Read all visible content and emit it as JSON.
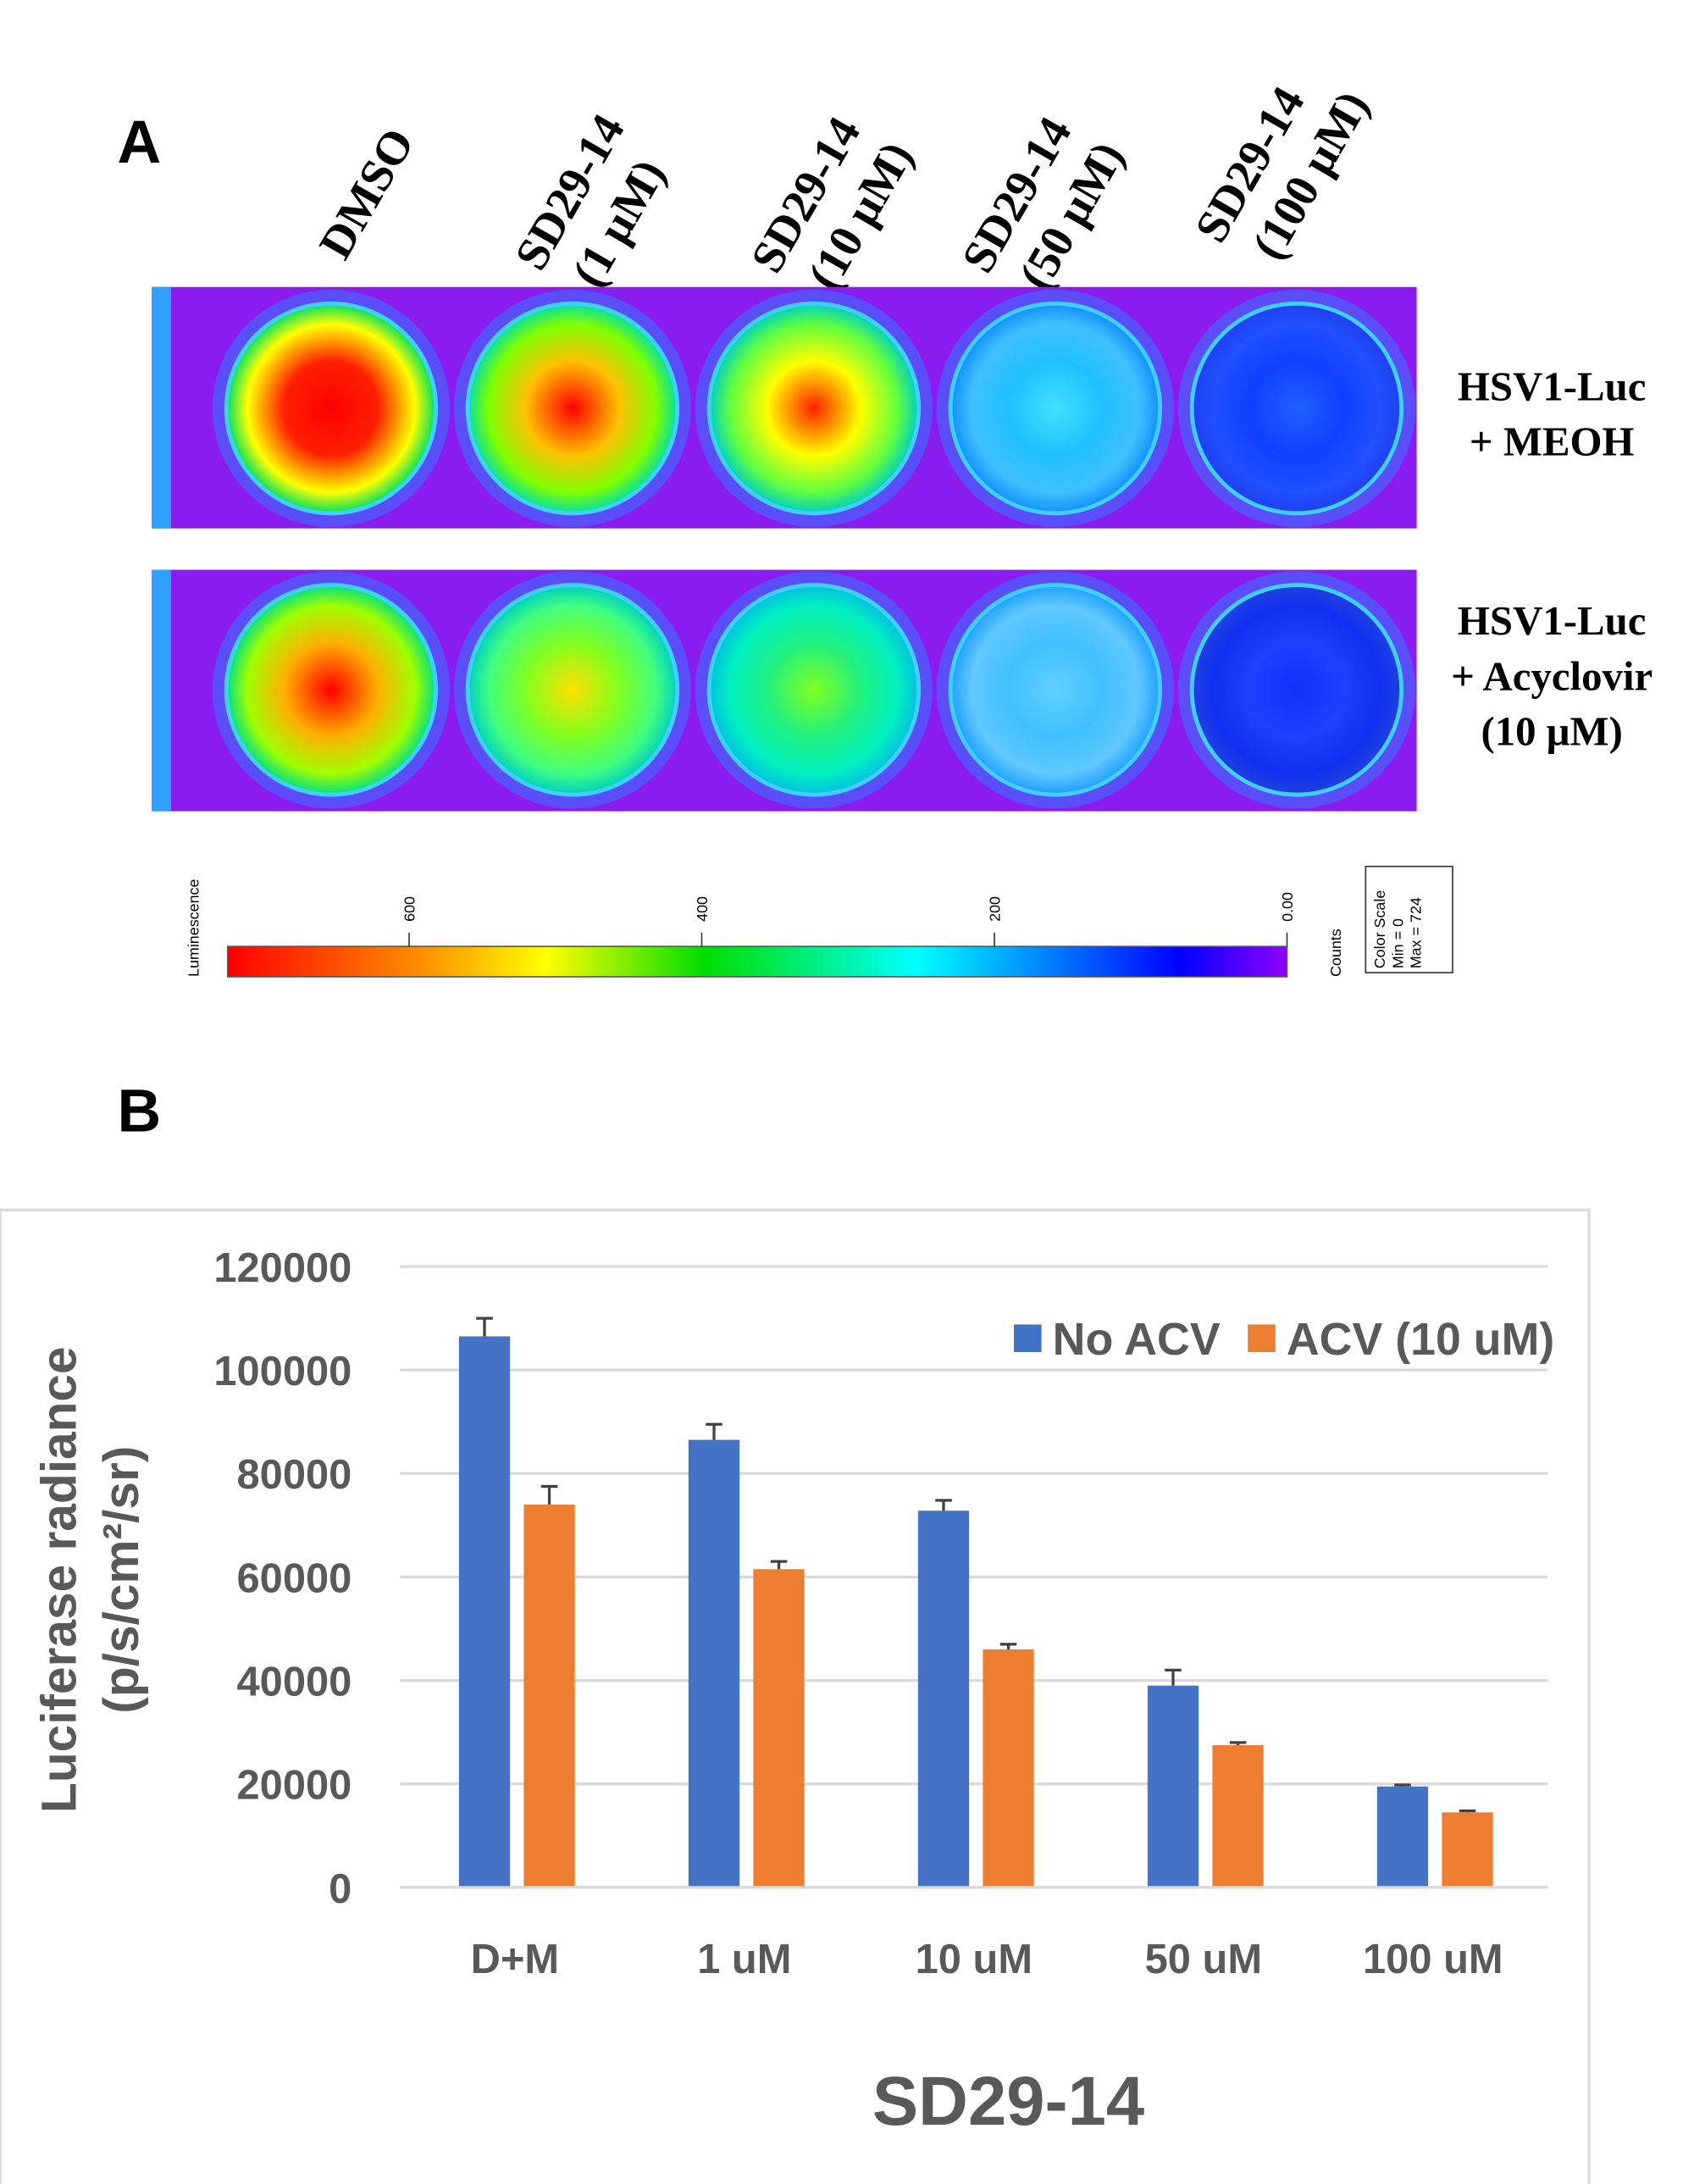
{
  "panel_a": {
    "panel_label": "A",
    "columns": [
      [
        "DMSO"
      ],
      [
        "SD29-14",
        "(1 μM)"
      ],
      [
        "SD29-14",
        "(10 μM)"
      ],
      [
        "SD29-14",
        "(50 μM)"
      ],
      [
        "SD29-14",
        "(100 μM)"
      ]
    ],
    "rows": [
      [
        "HSV1-Luc",
        "+ MEOH"
      ],
      [
        "HSV1-Luc",
        "+ Acyclovir",
        "(10 μM)"
      ]
    ],
    "color_scale": {
      "label": "Luminescence",
      "unit": "Counts",
      "title": "Color Scale",
      "min": {
        "value": 0,
        "label": "Min = 0"
      },
      "max": {
        "value": 724,
        "label": "Max = 724"
      },
      "ticks": [
        600,
        400,
        200,
        {
          "value": 0,
          "label": "0.00"
        }
      ]
    }
  },
  "chart_data": {
    "type": "bar",
    "panel_label": "B",
    "categories": [
      "D+M",
      "1 uM",
      "10 uM",
      "50 uM",
      "100 uM"
    ],
    "series": [
      {
        "name": "No ACV",
        "color": "#4472c4",
        "values": [
          106500,
          86500,
          72800,
          39000,
          19500
        ],
        "errors": [
          3500,
          3000,
          2000,
          3000,
          300
        ]
      },
      {
        "name": "ACV (10 uM)",
        "color": "#ed7d31",
        "values": [
          74000,
          61500,
          46000,
          27500,
          14500
        ],
        "errors": [
          3500,
          1500,
          1000,
          500,
          300
        ]
      }
    ],
    "ylim": [
      0,
      120000
    ],
    "yticks": [
      0,
      20000,
      40000,
      60000,
      80000,
      100000,
      120000
    ],
    "y_label": [
      "Luciferase radiance",
      "(p/s/cm²/sr)"
    ],
    "x_label": "SD29-14",
    "grid": true,
    "legend": "top-right"
  }
}
